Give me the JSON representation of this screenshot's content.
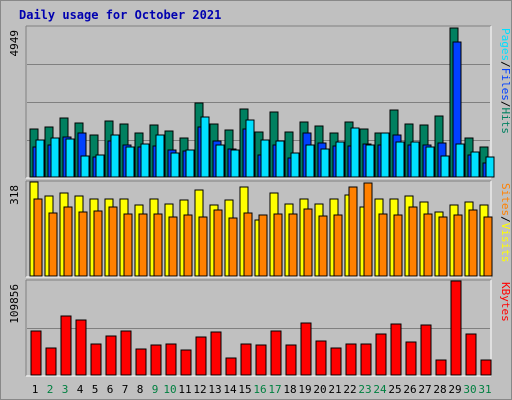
{
  "title": "Daily usage for October 2021",
  "chart_data": {
    "type": "bar",
    "categories": [
      "1",
      "2",
      "3",
      "4",
      "5",
      "6",
      "7",
      "8",
      "9",
      "10",
      "11",
      "12",
      "13",
      "14",
      "15",
      "16",
      "17",
      "18",
      "19",
      "20",
      "21",
      "22",
      "23",
      "24",
      "25",
      "26",
      "27",
      "28",
      "29",
      "30",
      "31"
    ],
    "weekend_days": [
      "2",
      "3",
      "9",
      "10",
      "16",
      "17",
      "23",
      "24",
      "30",
      "31"
    ],
    "colors": {
      "hits": "#008060",
      "files": "#0040ff",
      "pages": "#00e0ff",
      "visits": "#ffff00",
      "sites": "#ff8000",
      "kbytes": "#ff0000",
      "weekday_label": "#000000",
      "weekend_label": "#008040"
    },
    "panels": [
      {
        "name": "hits-files-pages",
        "max_label": "4949",
        "ymax": 4949,
        "legend": [
          {
            "text": "Pages",
            "color": "#00e0ff"
          },
          {
            "text": "/",
            "color": "#000000"
          },
          {
            "text": "Files",
            "color": "#0040ff"
          },
          {
            "text": "/",
            "color": "#000000"
          },
          {
            "text": "Hits",
            "color": "#008060"
          }
        ],
        "series": [
          {
            "name": "Hits",
            "values": [
              1600,
              1640,
              1950,
              1780,
              1370,
              1850,
              1760,
              1440,
              1730,
              1530,
              1300,
              2450,
              1740,
              1540,
              2230,
              1480,
              2140,
              1480,
              1830,
              1670,
              1440,
              1830,
              1570,
              1450,
              2200,
              1750,
              1700,
              2020,
              4930,
              1280,
              1000
            ]
          },
          {
            "name": "Files",
            "values": [
              1000,
              1040,
              1330,
              1450,
              650,
              1180,
              1060,
              1000,
              1030,
              890,
              860,
              1640,
              1180,
              910,
              1600,
              720,
              1060,
              630,
              1460,
              1110,
              1010,
              1030,
              1090,
              1040,
              1390,
              1060,
              1070,
              1110,
              4460,
              720,
              460
            ]
          },
          {
            "name": "Pages",
            "values": [
              1230,
              1280,
              1240,
              680,
              740,
              1400,
              1000,
              1100,
              1380,
              790,
              890,
              1980,
              1050,
              880,
              1870,
              1220,
              1190,
              780,
              1050,
              930,
              1160,
              1630,
              1060,
              1450,
              1160,
              1140,
              1000,
              680,
              1100,
              840,
              650
            ]
          }
        ]
      },
      {
        "name": "visits-sites",
        "max_label": "318",
        "ymax": 318,
        "legend": [
          {
            "text": "Sites",
            "color": "#ff8000"
          },
          {
            "text": "/",
            "color": "#000000"
          },
          {
            "text": "Visits",
            "color": "#ffff00"
          }
        ],
        "series": [
          {
            "name": "Visits",
            "values": [
              318,
              270,
              280,
              270,
              260,
              262,
              260,
              240,
              260,
              242,
              258,
              290,
              240,
              258,
              300,
              190,
              280,
              245,
              260,
              245,
              260,
              275,
              232,
              262,
              262,
              270,
              252,
              218,
              240,
              250,
              240
            ]
          },
          {
            "name": "Sites",
            "values": [
              262,
              212,
              235,
              218,
              220,
              235,
              210,
              210,
              210,
              200,
              205,
              198,
              222,
              195,
              212,
              208,
              210,
              210,
              225,
              202,
              208,
              300,
              315,
              210,
              205,
              235,
              210,
              200,
              205,
              222,
              198
            ]
          }
        ]
      },
      {
        "name": "kbytes",
        "max_label": "109856",
        "ymax": 109856,
        "legend": [
          {
            "text": "KBytes",
            "color": "#ff0000"
          }
        ],
        "series": [
          {
            "name": "KBytes",
            "values": [
              52000,
              32000,
              69000,
              64000,
              36000,
              46000,
              51000,
              30000,
              35000,
              36000,
              29000,
              44000,
              50000,
              20000,
              36000,
              35000,
              51000,
              35000,
              61000,
              40000,
              32000,
              36000,
              36000,
              48000,
              60000,
              38000,
              59000,
              17000,
              109856,
              48000,
              18000
            ]
          }
        ]
      }
    ]
  }
}
